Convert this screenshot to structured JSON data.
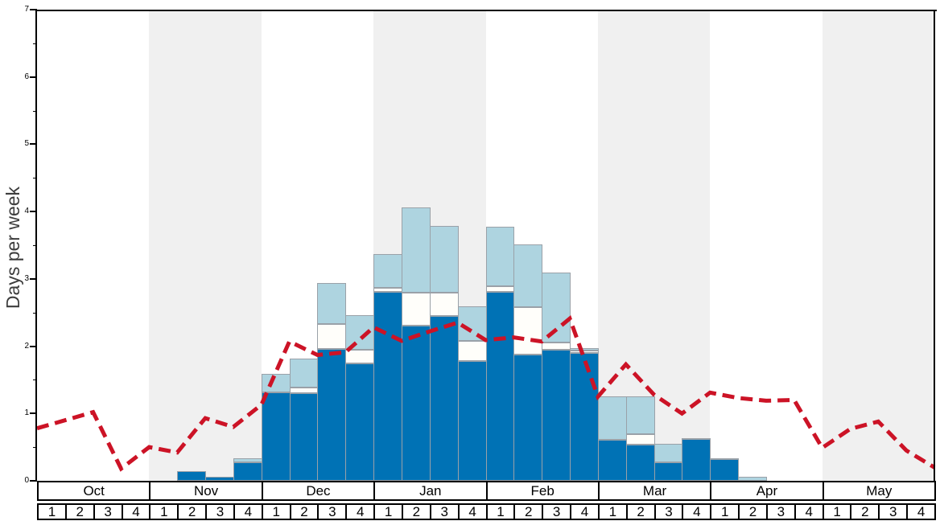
{
  "y_axis": {
    "label": "Days per week",
    "tick_labels": [
      "0",
      "1",
      "2",
      "3",
      "4",
      "5",
      "6",
      "7"
    ],
    "max": 7
  },
  "x_axis": {
    "months": [
      "Oct",
      "Nov",
      "Dec",
      "Jan",
      "Feb",
      "Mar",
      "Apr",
      "May"
    ],
    "weeks_per_month": [
      "1",
      "2",
      "3",
      "4"
    ],
    "shaded_months": [
      "Nov",
      "Jan",
      "Mar",
      "May"
    ]
  },
  "colors": {
    "dark_blue": "#0072b5",
    "white_segment": "#fffefa",
    "light_blue": "#aed4e0",
    "segment_border": "#9aa1a8",
    "band_gray": "#f0f0f0",
    "line_red": "#cc1326",
    "axis_black": "#000000",
    "ylabel_gray": "#3d3d3d"
  },
  "chart_data": {
    "type": "bar",
    "subtype": "stacked-bars-with-dashed-line-overlay",
    "title": "",
    "xlabel": "",
    "ylabel": "Days per week",
    "ylim": [
      0,
      7
    ],
    "grid": false,
    "legend": "none",
    "categories": [
      "Oct w1",
      "Oct w2",
      "Oct w3",
      "Oct w4",
      "Nov w1",
      "Nov w2",
      "Nov w3",
      "Nov w4",
      "Dec w1",
      "Dec w2",
      "Dec w3",
      "Dec w4",
      "Jan w1",
      "Jan w2",
      "Jan w3",
      "Jan w4",
      "Feb w1",
      "Feb w2",
      "Feb w3",
      "Feb w4",
      "Mar w1",
      "Mar w2",
      "Mar w3",
      "Mar w4",
      "Apr w1",
      "Apr w2",
      "Apr w3",
      "Apr w4",
      "May w1",
      "May w2",
      "May w3",
      "May w4"
    ],
    "series": [
      {
        "name": "dark_blue_days_top",
        "values": [
          0,
          0,
          0,
          0,
          0,
          0.14,
          0.06,
          0.28,
          1.31,
          1.3,
          1.96,
          1.74,
          2.81,
          2.31,
          2.45,
          1.78,
          2.81,
          1.88,
          1.95,
          1.9,
          0.61,
          0.54,
          0.27,
          0.62,
          0.33,
          0,
          0,
          0,
          0,
          0,
          0,
          0
        ]
      },
      {
        "name": "white_days_cumulative_top",
        "values": [
          0,
          0,
          0,
          0,
          0,
          0.14,
          0.06,
          0.28,
          1.31,
          1.39,
          2.33,
          1.95,
          2.87,
          2.8,
          2.8,
          2.08,
          2.89,
          2.58,
          2.05,
          1.93,
          0.61,
          0.69,
          0.27,
          0.62,
          0.33,
          0,
          0,
          0,
          0,
          0,
          0,
          0
        ]
      },
      {
        "name": "light_blue_days_cumulative_top",
        "values": [
          0,
          0,
          0,
          0,
          0,
          0.14,
          0.06,
          0.34,
          1.59,
          1.82,
          2.94,
          2.46,
          3.37,
          4.06,
          3.79,
          2.59,
          3.78,
          3.51,
          3.09,
          1.97,
          1.26,
          1.26,
          0.55,
          0.63,
          0.34,
          0.06,
          0,
          0,
          0,
          0,
          0,
          0
        ]
      }
    ],
    "line_series": {
      "name": "red_dashed_average_line",
      "note": "33 vertices, one per week boundary from season start to end",
      "values": [
        0.78,
        0.9,
        1.02,
        0.18,
        0.5,
        0.42,
        0.93,
        0.8,
        1.13,
        2.07,
        1.87,
        1.91,
        2.28,
        2.08,
        2.22,
        2.35,
        2.09,
        2.13,
        2.07,
        2.41,
        1.25,
        1.73,
        1.28,
        1.0,
        1.31,
        1.23,
        1.19,
        1.2,
        0.49,
        0.77,
        0.88,
        0.45,
        0.2
      ]
    }
  }
}
